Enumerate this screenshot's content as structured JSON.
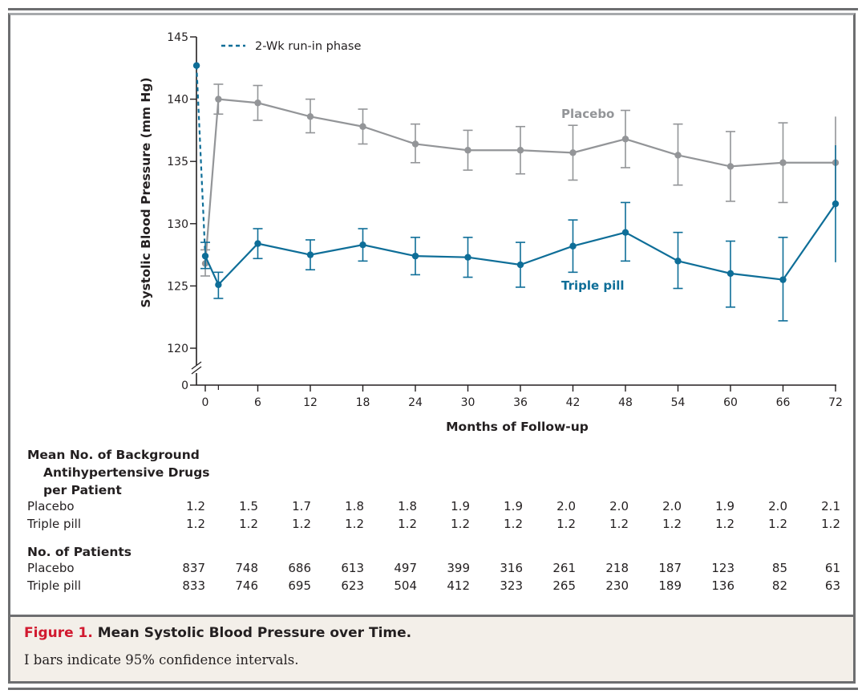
{
  "figure": {
    "label": "Figure 1.",
    "title": "Mean Systolic Blood Pressure over Time.",
    "note": "I bars indicate 95% confidence intervals."
  },
  "colors": {
    "placebo": "#939598",
    "triple_pill": "#0e6e98",
    "axis": "#231f20",
    "caption_bg": "#f3efe9",
    "figure_label": "#d1192f"
  },
  "chart_data": {
    "type": "line",
    "title": "Mean Systolic Blood Pressure over Time",
    "xlabel": "Months of Follow-up",
    "ylabel": "Systolic Blood Pressure (mm Hg)",
    "xlim": [
      -1,
      72
    ],
    "ylim": [
      120,
      145
    ],
    "y_axis_break": true,
    "y_ticks": [
      "0",
      "120",
      "125",
      "130",
      "135",
      "140",
      "145"
    ],
    "y_tick_values": [
      120,
      125,
      130,
      135,
      140,
      145
    ],
    "x_ticks": [
      "0",
      "6",
      "12",
      "18",
      "24",
      "30",
      "36",
      "42",
      "48",
      "54",
      "60",
      "66",
      "72"
    ],
    "x_tick_values": [
      0,
      6,
      12,
      18,
      24,
      30,
      36,
      42,
      48,
      54,
      60,
      66,
      72
    ],
    "x_minor_tick": 1.5,
    "grid": false,
    "legend": {
      "position": "top-left",
      "entries": [
        "2-Wk run-in phase"
      ]
    },
    "runin": {
      "name": "2-Wk run-in phase",
      "x": [
        -1,
        0
      ],
      "start_value": 142.7,
      "style": "dashed"
    },
    "series": [
      {
        "name": "Placebo",
        "x": [
          0,
          1.5,
          6,
          12,
          18,
          24,
          30,
          36,
          42,
          48,
          54,
          60,
          66,
          72
        ],
        "values": [
          126.8,
          140.0,
          139.7,
          138.6,
          137.8,
          136.4,
          135.9,
          135.9,
          135.7,
          136.8,
          135.5,
          134.6,
          134.9,
          134.9
        ],
        "ci_low": [
          125.8,
          138.8,
          138.3,
          137.3,
          136.4,
          134.9,
          134.3,
          134.0,
          133.5,
          134.5,
          133.1,
          131.8,
          131.7,
          131.2
        ],
        "ci_high": [
          127.9,
          141.2,
          141.1,
          140.0,
          139.2,
          138.0,
          137.5,
          137.8,
          137.9,
          139.1,
          138.0,
          137.4,
          138.1,
          138.6
        ]
      },
      {
        "name": "Triple pill",
        "x": [
          0,
          1.5,
          6,
          12,
          18,
          24,
          30,
          36,
          42,
          48,
          54,
          60,
          66,
          72
        ],
        "values": [
          127.4,
          125.1,
          128.4,
          127.5,
          128.3,
          127.4,
          127.3,
          126.7,
          128.2,
          129.3,
          127.0,
          126.0,
          125.5,
          131.6
        ],
        "ci_low": [
          126.4,
          124.0,
          127.2,
          126.3,
          127.0,
          125.9,
          125.7,
          124.9,
          126.1,
          127.0,
          124.8,
          123.3,
          122.2,
          126.9
        ],
        "ci_high": [
          128.5,
          126.1,
          129.6,
          128.7,
          129.6,
          128.9,
          128.9,
          128.5,
          130.3,
          131.7,
          129.3,
          128.6,
          128.9,
          136.3
        ]
      }
    ],
    "annotations": [
      "Placebo",
      "Triple pill"
    ]
  },
  "table": {
    "drugs_header": [
      "Mean No. of Background",
      "Antihypertensive Drugs",
      "per Patient"
    ],
    "drugs_rows": [
      {
        "label": "Placebo",
        "values": [
          "1.2",
          "1.5",
          "1.7",
          "1.8",
          "1.8",
          "1.9",
          "1.9",
          "2.0",
          "2.0",
          "2.0",
          "1.9",
          "2.0",
          "2.1"
        ]
      },
      {
        "label": "Triple pill",
        "values": [
          "1.2",
          "1.2",
          "1.2",
          "1.2",
          "1.2",
          "1.2",
          "1.2",
          "1.2",
          "1.2",
          "1.2",
          "1.2",
          "1.2",
          "1.2"
        ]
      }
    ],
    "patients_header": "No. of Patients",
    "patients_rows": [
      {
        "label": "Placebo",
        "values": [
          "837",
          "748",
          "686",
          "613",
          "497",
          "399",
          "316",
          "261",
          "218",
          "187",
          "123",
          "85",
          "61"
        ]
      },
      {
        "label": "Triple pill",
        "values": [
          "833",
          "746",
          "695",
          "623",
          "504",
          "412",
          "323",
          "265",
          "230",
          "189",
          "136",
          "82",
          "63"
        ]
      }
    ]
  }
}
